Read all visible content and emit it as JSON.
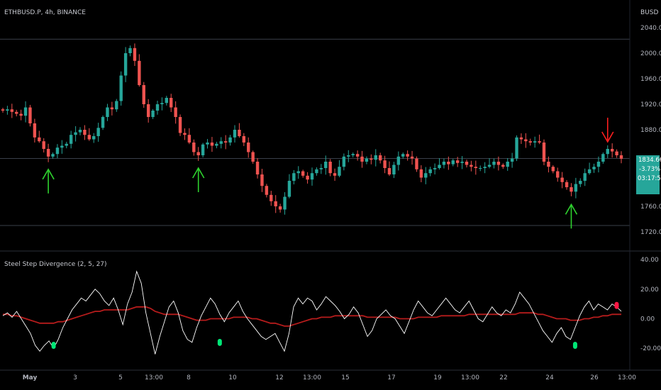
{
  "header": {
    "symbol_line": "ETHBUSD.P, 4h, BINANCE",
    "currency": "BUSD"
  },
  "price_badge": {
    "price": "1834.66",
    "change": "-3.73%",
    "countdown": "03:17:58",
    "color": "#26a69a"
  },
  "indicator": {
    "title": "Steel Step Divergence (2, 5, 27)",
    "line_color": "#ffffff",
    "signal_color": "#b71c1c",
    "bull_marker_color": "#00e676",
    "bear_marker_color": "#ff1744"
  },
  "colors": {
    "up_candle": "#26a69a",
    "down_candle": "#ef5350",
    "up_arrow": "#2ed12e",
    "down_arrow": "#ff1f1f"
  },
  "chart_data": [
    {
      "type": "candlestick",
      "ylabel": "BUSD",
      "ylim": [
        1700,
        2050
      ],
      "y_ticks": [
        "2040.00",
        "2000.00",
        "1960.00",
        "1920.00",
        "1880.00",
        "1760.00",
        "1720.00"
      ],
      "x_ticks": [
        "May",
        "3",
        "5",
        "13:00",
        "8",
        "10",
        "12",
        "13:00",
        "15",
        "17",
        "19",
        "13:00",
        "22",
        "24",
        "26",
        "13:00"
      ],
      "horizontal_levels": [
        2022,
        1835,
        1730
      ],
      "close": [
        1910,
        1912,
        1908,
        1905,
        1902,
        1915,
        1890,
        1868,
        1862,
        1850,
        1838,
        1842,
        1852,
        1855,
        1858,
        1872,
        1876,
        1880,
        1872,
        1865,
        1870,
        1883,
        1900,
        1915,
        1912,
        1925,
        1965,
        2000,
        2008,
        1988,
        1950,
        1920,
        1900,
        1910,
        1920,
        1922,
        1930,
        1915,
        1900,
        1875,
        1872,
        1860,
        1845,
        1840,
        1857,
        1860,
        1855,
        1858,
        1862,
        1860,
        1868,
        1880,
        1870,
        1860,
        1845,
        1830,
        1810,
        1792,
        1778,
        1768,
        1760,
        1755,
        1775,
        1800,
        1812,
        1815,
        1808,
        1802,
        1812,
        1818,
        1820,
        1830,
        1812,
        1808,
        1822,
        1838,
        1840,
        1842,
        1838,
        1830,
        1835,
        1833,
        1840,
        1832,
        1820,
        1810,
        1825,
        1838,
        1842,
        1838,
        1835,
        1818,
        1805,
        1812,
        1818,
        1820,
        1825,
        1830,
        1826,
        1832,
        1828,
        1830,
        1825,
        1822,
        1820,
        1820,
        1822,
        1825,
        1830,
        1825,
        1822,
        1830,
        1835,
        1868,
        1865,
        1862,
        1860,
        1862,
        1860,
        1830,
        1822,
        1815,
        1805,
        1798,
        1790,
        1783,
        1795,
        1800,
        1812,
        1818,
        1822,
        1830,
        1842,
        1850,
        1846,
        1840,
        1834.66
      ],
      "ohlc_colors": "open derived from previous close"
    },
    {
      "type": "line",
      "title": "Steel Step Divergence (2, 5, 27)",
      "ylim": [
        -30,
        42
      ],
      "y_ticks": [
        "40.00",
        "20.00",
        "0.00",
        "-20.00"
      ],
      "series": [
        {
          "values": [
            2,
            4,
            1,
            5,
            0,
            -5,
            -10,
            -18,
            -22,
            -18,
            -15,
            -20,
            -14,
            -6,
            0,
            6,
            10,
            14,
            12,
            16,
            20,
            17,
            12,
            9,
            14,
            6,
            -4,
            10,
            18,
            32,
            24,
            4,
            -10,
            -24,
            -12,
            -2,
            8,
            12,
            4,
            -8,
            -14,
            -16,
            -6,
            2,
            8,
            14,
            10,
            3,
            -2,
            4,
            8,
            12,
            5,
            0,
            -4,
            -8,
            -12,
            -14,
            -12,
            -10,
            -16,
            -22,
            -10,
            8,
            14,
            10,
            14,
            12,
            6,
            10,
            15,
            12,
            9,
            5,
            0,
            3,
            8,
            4,
            -4,
            -12,
            -8,
            0,
            3,
            6,
            2,
            0,
            -5,
            -10,
            -2,
            6,
            12,
            8,
            4,
            2,
            6,
            10,
            14,
            10,
            6,
            4,
            8,
            12,
            6,
            0,
            -2,
            3,
            8,
            4,
            2,
            6,
            4,
            10,
            18,
            14,
            10,
            4,
            -2,
            -8,
            -12,
            -16,
            -10,
            -6,
            -12,
            -14,
            -6,
            2,
            8,
            12,
            6,
            10,
            8,
            6,
            10,
            8,
            5
          ]
        },
        {
          "values": [
            3,
            3,
            2,
            2,
            1,
            0,
            -1,
            -2,
            -3,
            -3,
            -3,
            -3,
            -2,
            -2,
            -1,
            0,
            1,
            2,
            3,
            4,
            5,
            5,
            6,
            6,
            6,
            6,
            6,
            6,
            7,
            8,
            8,
            8,
            7,
            5,
            4,
            3,
            3,
            3,
            3,
            2,
            1,
            0,
            -1,
            -1,
            -1,
            0,
            0,
            0,
            0,
            0,
            1,
            1,
            1,
            1,
            0,
            0,
            -1,
            -2,
            -3,
            -3,
            -4,
            -5,
            -5,
            -4,
            -3,
            -2,
            -1,
            0,
            0,
            1,
            1,
            1,
            2,
            2,
            2,
            2,
            2,
            2,
            2,
            1,
            1,
            1,
            1,
            1,
            1,
            1,
            0,
            0,
            0,
            0,
            1,
            1,
            1,
            1,
            1,
            2,
            2,
            2,
            2,
            2,
            2,
            3,
            3,
            3,
            3,
            3,
            3,
            3,
            3,
            3,
            3,
            3,
            4,
            4,
            4,
            4,
            3,
            3,
            2,
            1,
            0,
            0,
            0,
            -1,
            -1,
            -1,
            0,
            0,
            1,
            1,
            2,
            2,
            3,
            3,
            3
          ]
        }
      ]
    }
  ]
}
